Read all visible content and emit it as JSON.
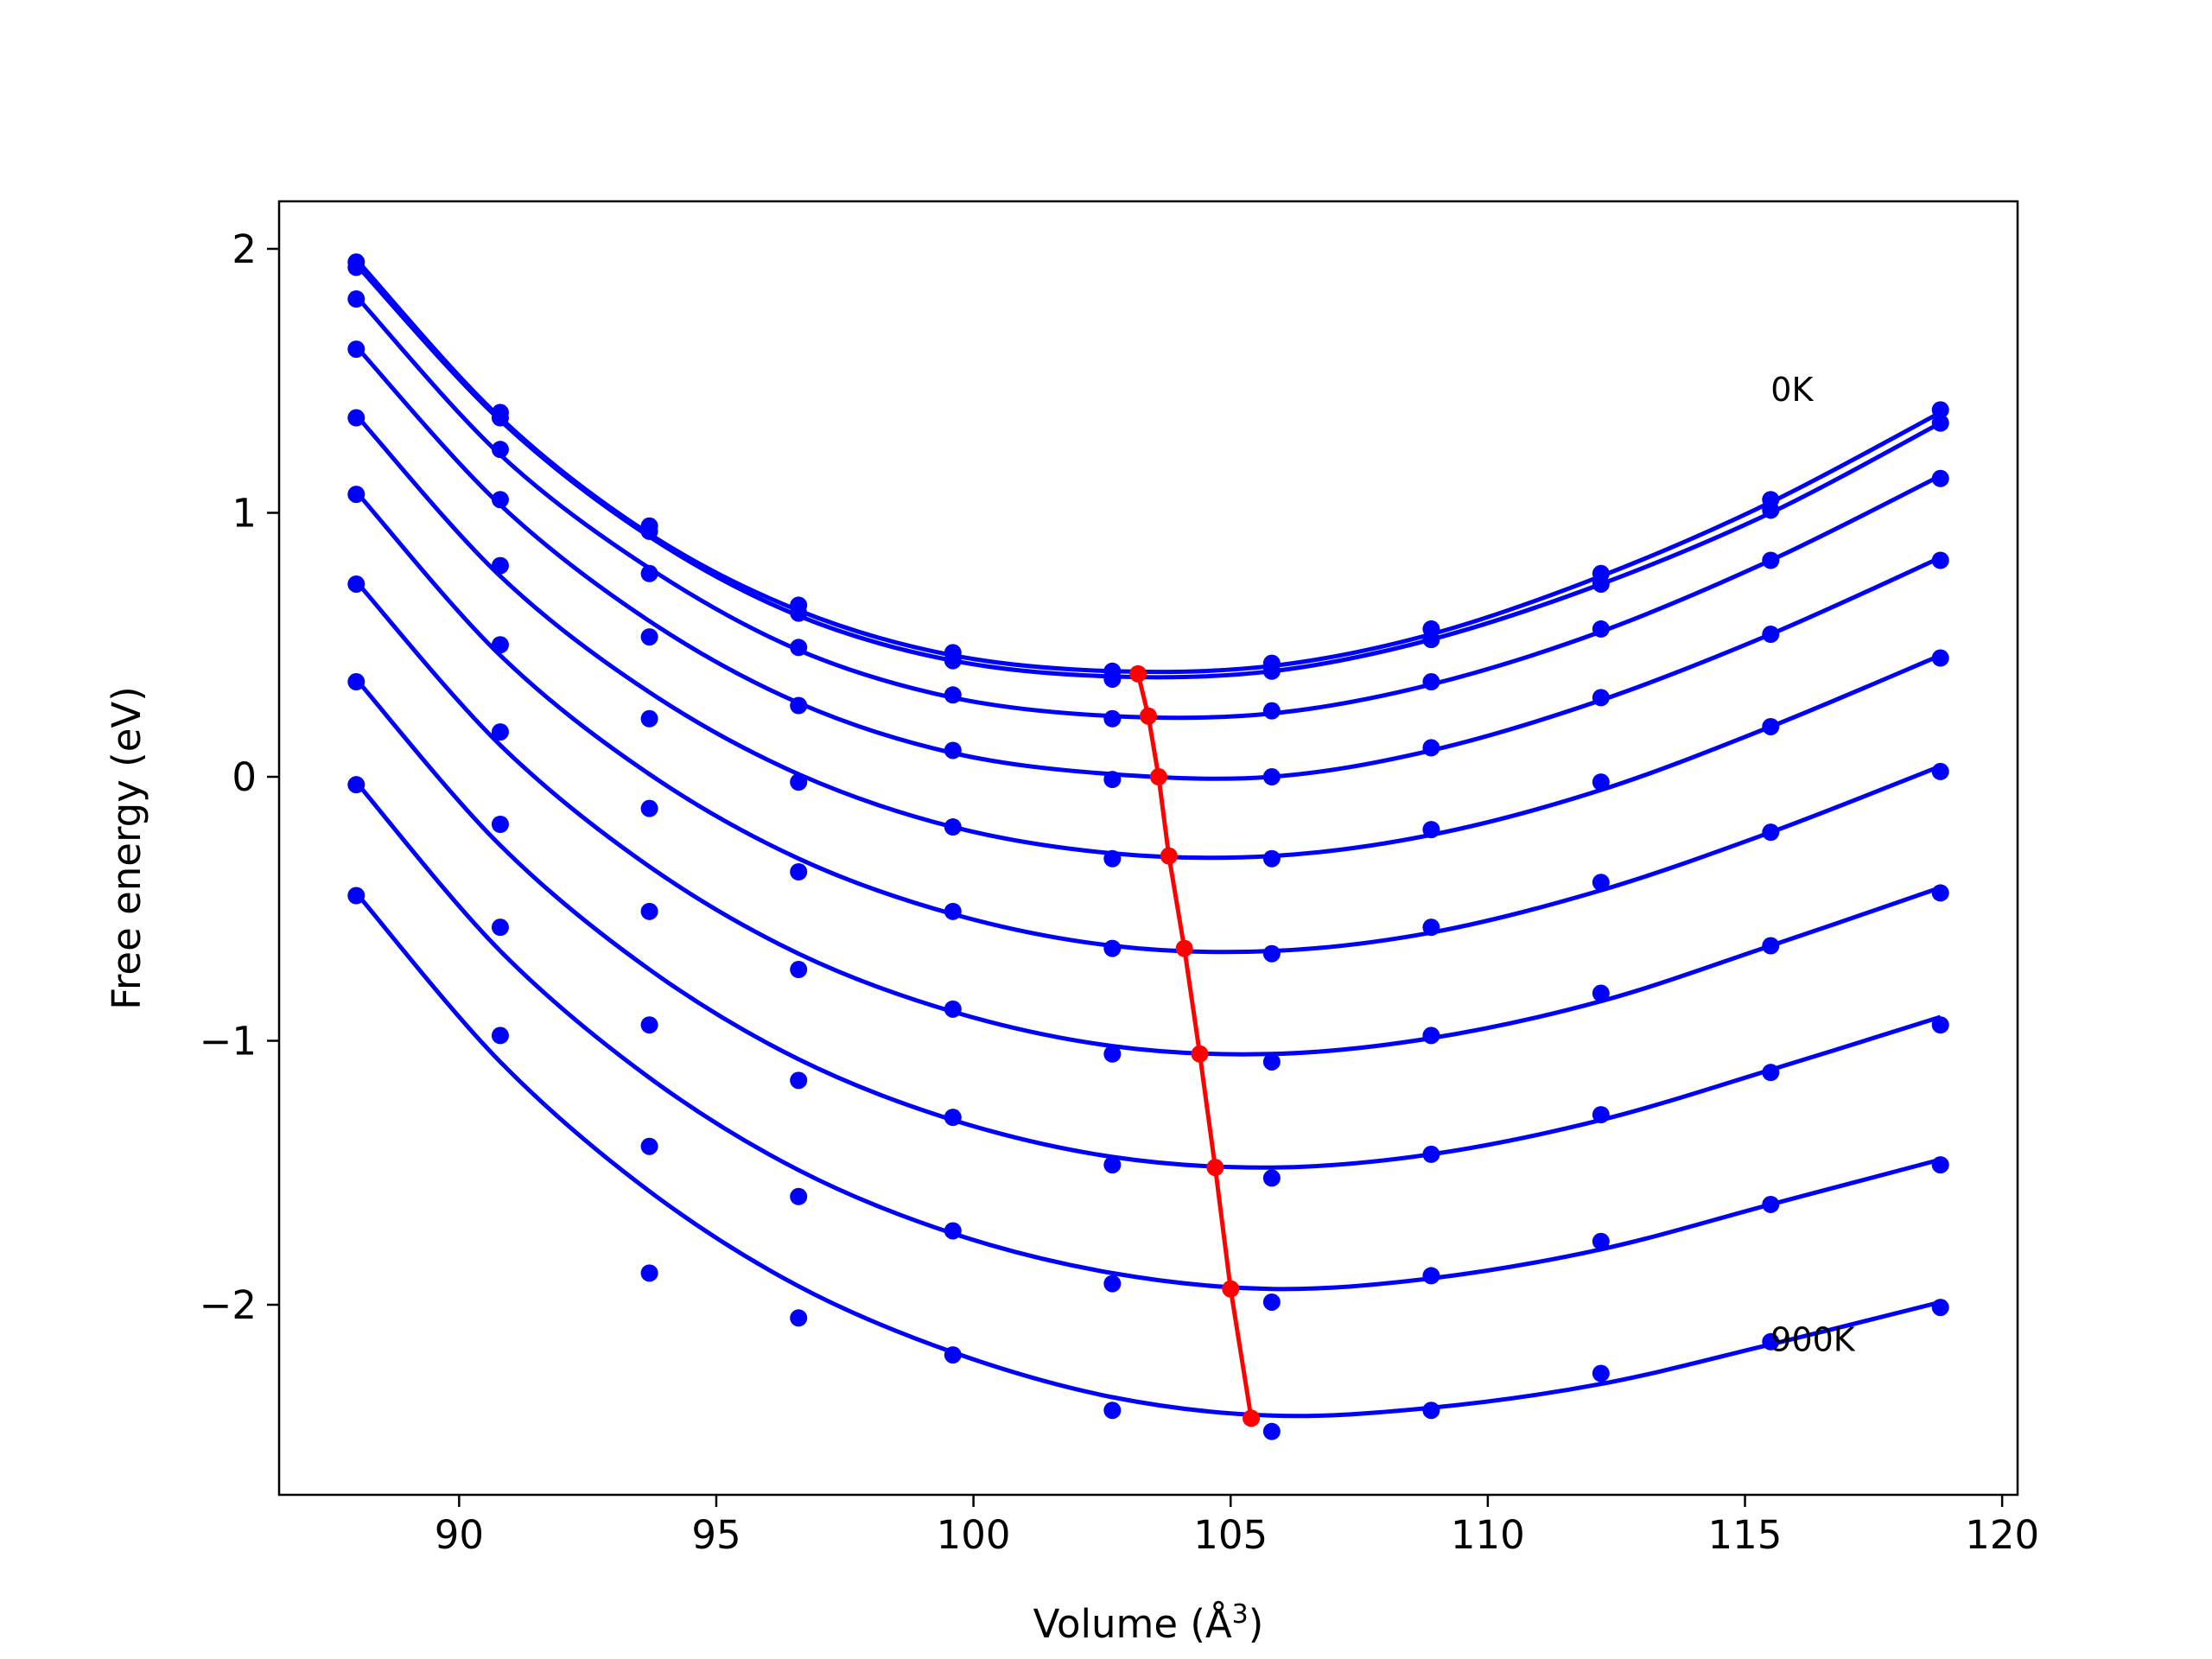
{
  "chart_data": {
    "type": "scatter",
    "xlabel": "Volume (Å",
    "xlabel_sup": "3",
    "xlabel_end": ")",
    "ylabel": "Free energy (eV)",
    "xlim": [
      86.5,
      120.3
    ],
    "ylim": [
      -2.72,
      2.18
    ],
    "x_ticks": [
      90,
      95,
      100,
      105,
      110,
      115,
      120
    ],
    "x_tick_labels": [
      "90",
      "95",
      "100",
      "105",
      "110",
      "115",
      "120"
    ],
    "y_ticks": [
      2,
      1,
      0,
      -1,
      -2
    ],
    "y_tick_labels": [
      "2",
      "1",
      "0",
      "−1",
      "−2"
    ],
    "grid": false,
    "colors": {
      "points": "#0000ff",
      "fits": "#0000ff",
      "minima": "#ff0000"
    },
    "annotations": [
      {
        "text": "0K",
        "x": 115.5,
        "y": 1.47
      },
      {
        "text": "900K",
        "x": 115.5,
        "y": -2.13
      }
    ],
    "volumes": [
      88.0,
      90.8,
      93.7,
      96.6,
      99.6,
      102.7,
      105.8,
      108.9,
      112.2,
      115.5,
      118.8
    ],
    "series": [
      {
        "values": [
          1.95,
          1.38,
          0.95,
          0.65,
          0.47,
          0.4,
          0.43,
          0.56,
          0.77,
          1.05,
          1.39
        ],
        "fit": [
          1.96,
          1.36,
          0.92,
          0.63,
          0.46,
          0.4,
          0.42,
          0.54,
          0.76,
          1.04,
          1.38
        ]
      },
      {
        "values": [
          1.93,
          1.36,
          0.93,
          0.62,
          0.44,
          0.37,
          0.4,
          0.52,
          0.73,
          1.01,
          1.34
        ],
        "fit": [
          1.94,
          1.35,
          0.91,
          0.61,
          0.44,
          0.38,
          0.4,
          0.52,
          0.73,
          1.0,
          1.34
        ]
      },
      {
        "values": [
          1.81,
          1.24,
          0.77,
          0.49,
          0.31,
          0.22,
          0.25,
          0.36,
          0.56,
          0.82,
          1.13
        ],
        "fit": [
          1.82,
          1.22,
          0.79,
          0.48,
          0.3,
          0.23,
          0.24,
          0.35,
          0.55,
          0.82,
          1.14
        ]
      },
      {
        "values": [
          1.62,
          1.05,
          0.53,
          0.27,
          0.1,
          -0.01,
          0.0,
          0.11,
          0.3,
          0.54,
          0.82
        ],
        "fit": [
          1.63,
          1.03,
          0.59,
          0.28,
          0.09,
          0.01,
          0.0,
          0.1,
          0.29,
          0.54,
          0.83
        ]
      },
      {
        "values": [
          1.36,
          0.8,
          0.22,
          -0.02,
          -0.19,
          -0.31,
          -0.31,
          -0.2,
          -0.02,
          0.19,
          0.45
        ],
        "fit": [
          1.37,
          0.76,
          0.32,
          0.01,
          -0.19,
          -0.29,
          -0.3,
          -0.22,
          -0.05,
          0.19,
          0.46
        ]
      },
      {
        "values": [
          1.07,
          0.5,
          -0.12,
          -0.36,
          -0.51,
          -0.65,
          -0.67,
          -0.57,
          -0.4,
          -0.21,
          0.02
        ],
        "fit": [
          1.08,
          0.46,
          0.01,
          -0.31,
          -0.52,
          -0.64,
          -0.66,
          -0.59,
          -0.43,
          -0.21,
          0.04
        ]
      },
      {
        "values": [
          0.73,
          0.17,
          -0.51,
          -0.73,
          -0.88,
          -1.05,
          -1.08,
          -0.98,
          -0.82,
          -0.64,
          -0.44
        ],
        "fit": [
          0.74,
          0.12,
          -0.34,
          -0.67,
          -0.89,
          -1.02,
          -1.05,
          -0.99,
          -0.85,
          -0.64,
          -0.42
        ]
      },
      {
        "values": [
          0.36,
          -0.18,
          -0.94,
          -1.15,
          -1.29,
          -1.47,
          -1.52,
          -1.43,
          -1.28,
          -1.12,
          -0.94
        ],
        "fit": [
          0.37,
          -0.26,
          -0.73,
          -1.07,
          -1.3,
          -1.44,
          -1.48,
          -1.43,
          -1.3,
          -1.11,
          -0.91
        ]
      },
      {
        "values": [
          -0.03,
          -0.57,
          -1.4,
          -1.59,
          -1.72,
          -1.92,
          -1.99,
          -1.89,
          -1.76,
          -1.62,
          -1.47
        ],
        "fit": [
          -0.02,
          -0.66,
          -1.14,
          -1.49,
          -1.73,
          -1.88,
          -1.94,
          -1.9,
          -1.79,
          -1.62,
          -1.45
        ]
      },
      {
        "values": [
          -0.45,
          -0.98,
          -1.88,
          -2.05,
          -2.19,
          -2.4,
          -2.48,
          -2.4,
          -2.26,
          -2.14,
          -2.01
        ],
        "fit": [
          -0.44,
          -1.08,
          -1.57,
          -1.93,
          -2.18,
          -2.35,
          -2.42,
          -2.39,
          -2.3,
          -2.15,
          -1.99
        ]
      }
    ],
    "minima": {
      "x": [
        103.2,
        103.4,
        103.6,
        103.8,
        104.1,
        104.4,
        104.7,
        105.0,
        105.4
      ],
      "y": [
        0.39,
        0.23,
        0.0,
        -0.3,
        -0.65,
        -1.05,
        -1.48,
        -1.94,
        -2.43
      ]
    }
  }
}
